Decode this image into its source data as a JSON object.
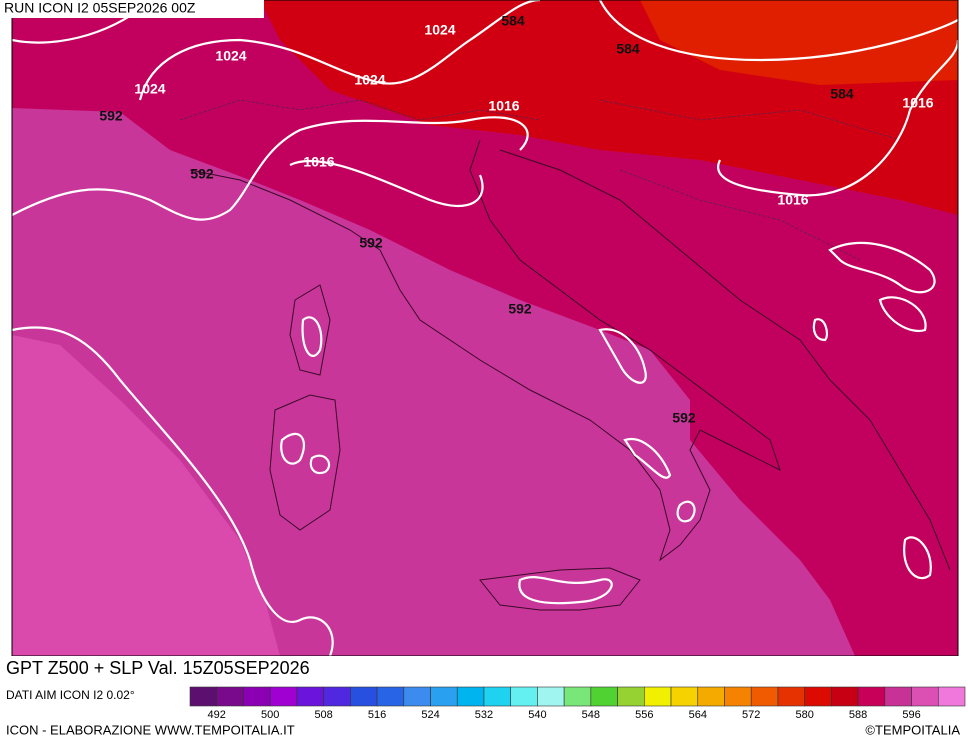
{
  "header": {
    "run": "RUN ICON I2 05SEP2026 00Z"
  },
  "map": {
    "contour_labels": [
      1024,
      1024,
      1024,
      1024,
      584,
      584,
      584,
      592,
      592,
      592,
      592,
      592,
      1016,
      1016,
      1016,
      1016
    ]
  },
  "footer": {
    "title": "GPT Z500 + SLP Val. 15Z05SEP2026",
    "source": "DATI AIM ICON I2 0.02°",
    "credit": "ICON - ELABORAZIONE WWW.TEMPOITALIA.IT",
    "copyright": "©TEMPOITALIA"
  },
  "legend": {
    "colors": [
      "#5c0f6e",
      "#7a0a8c",
      "#8c00b4",
      "#a000d2",
      "#6a14dc",
      "#5028e0",
      "#2850e0",
      "#2864e6",
      "#3c8cf0",
      "#2aa0f0",
      "#00b4f0",
      "#1ed2f0",
      "#64f0f0",
      "#a0f5f0",
      "#78e678",
      "#50d232",
      "#96d232",
      "#f0f000",
      "#f5d200",
      "#f5aa00",
      "#f58200",
      "#f05a00",
      "#e63200",
      "#dc0a00",
      "#c80014",
      "#c8005a",
      "#c83296",
      "#dc50b4",
      "#f078dc"
    ],
    "ticks": [
      492,
      500,
      508,
      516,
      524,
      532,
      540,
      548,
      556,
      564,
      572,
      580,
      588,
      596
    ]
  }
}
